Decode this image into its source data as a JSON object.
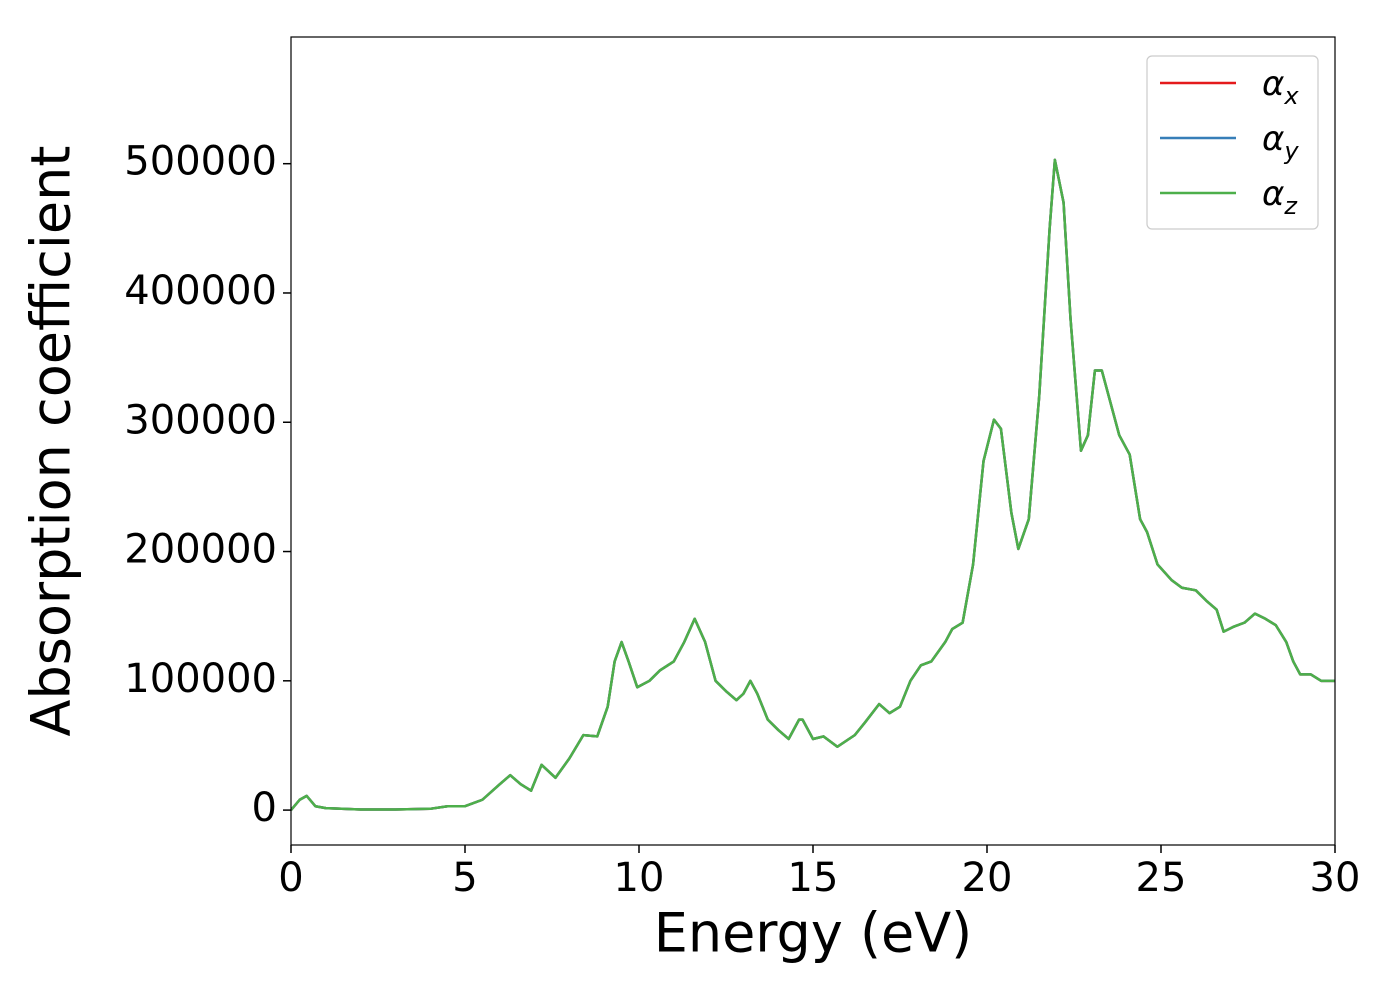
{
  "chart_data": {
    "type": "line",
    "xlabel": "Energy (eV)",
    "ylabel": "Absorption coefficient",
    "x": [
      0,
      0.25,
      0.45,
      0.7,
      1,
      2,
      3,
      4,
      4.5,
      5,
      5.5,
      6,
      6.3,
      6.6,
      6.9,
      7.2,
      7.4,
      7.6,
      8,
      8.4,
      8.8,
      9.1,
      9.3,
      9.5,
      9.7,
      9.95,
      10.3,
      10.6,
      11,
      11.3,
      11.6,
      11.9,
      12.2,
      12.5,
      12.8,
      13,
      13.2,
      13.4,
      13.7,
      14,
      14.3,
      14.6,
      14.7,
      15,
      15.3,
      15.7,
      16.2,
      16.5,
      16.9,
      17.2,
      17.5,
      17.8,
      18.1,
      18.4,
      18.8,
      19,
      19.3,
      19.6,
      19.9,
      20.2,
      20.4,
      20.7,
      20.9,
      21.2,
      21.5,
      21.8,
      21.95,
      22.2,
      22.4,
      22.7,
      22.9,
      23.1,
      23.3,
      23.6,
      23.8,
      24.1,
      24.4,
      24.6,
      24.9,
      25.3,
      25.6,
      26,
      26.3,
      26.6,
      26.8,
      27.1,
      27.4,
      27.7,
      28,
      28.3,
      28.6,
      28.8,
      29,
      29.3,
      29.6,
      30
    ],
    "series": [
      {
        "name": "αx",
        "color": "#e41a1c",
        "values": [
          0,
          8000,
          11000,
          3000,
          1500,
          500,
          500,
          1000,
          3000,
          3000,
          8000,
          20000,
          27000,
          20000,
          15000,
          35000,
          30000,
          25000,
          40000,
          58000,
          57000,
          80000,
          115000,
          130000,
          115000,
          95000,
          100000,
          108000,
          115000,
          130000,
          148000,
          130000,
          100000,
          92000,
          85000,
          90000,
          100000,
          90000,
          70000,
          62000,
          55000,
          70000,
          70000,
          55000,
          57000,
          49000,
          58000,
          68000,
          82000,
          75000,
          80000,
          100000,
          112000,
          115000,
          130000,
          140000,
          145000,
          190000,
          270000,
          302000,
          295000,
          230000,
          202000,
          225000,
          320000,
          450000,
          503000,
          470000,
          380000,
          278000,
          290000,
          340000,
          340000,
          310000,
          290000,
          275000,
          225000,
          215000,
          190000,
          178000,
          172000,
          170000,
          162000,
          155000,
          138000,
          142000,
          145000,
          152000,
          148000,
          143000,
          130000,
          115000,
          105000,
          105000,
          100000,
          100000
        ]
      },
      {
        "name": "αy",
        "color": "#377eb8",
        "values": [
          0,
          8000,
          11000,
          3000,
          1500,
          500,
          500,
          1000,
          3000,
          3000,
          8000,
          20000,
          27000,
          20000,
          15000,
          35000,
          30000,
          25000,
          40000,
          58000,
          57000,
          80000,
          115000,
          130000,
          115000,
          95000,
          100000,
          108000,
          115000,
          130000,
          148000,
          130000,
          100000,
          92000,
          85000,
          90000,
          100000,
          90000,
          70000,
          62000,
          55000,
          70000,
          70000,
          55000,
          57000,
          49000,
          58000,
          68000,
          82000,
          75000,
          80000,
          100000,
          112000,
          115000,
          130000,
          140000,
          145000,
          190000,
          270000,
          302000,
          295000,
          230000,
          202000,
          225000,
          320000,
          450000,
          503000,
          470000,
          380000,
          278000,
          290000,
          340000,
          340000,
          310000,
          290000,
          275000,
          225000,
          215000,
          190000,
          178000,
          172000,
          170000,
          162000,
          155000,
          138000,
          142000,
          145000,
          152000,
          148000,
          143000,
          130000,
          115000,
          105000,
          105000,
          100000,
          100000
        ]
      },
      {
        "name": "αz",
        "color": "#4daf4a",
        "values": [
          0,
          8000,
          11000,
          3000,
          1500,
          500,
          500,
          1000,
          3000,
          3000,
          8000,
          20000,
          27000,
          20000,
          15000,
          35000,
          30000,
          25000,
          40000,
          58000,
          57000,
          80000,
          115000,
          130000,
          115000,
          95000,
          100000,
          108000,
          115000,
          130000,
          148000,
          130000,
          100000,
          92000,
          85000,
          90000,
          100000,
          90000,
          70000,
          62000,
          55000,
          70000,
          70000,
          55000,
          57000,
          49000,
          58000,
          68000,
          82000,
          75000,
          80000,
          100000,
          112000,
          115000,
          130000,
          140000,
          145000,
          190000,
          270000,
          302000,
          295000,
          230000,
          202000,
          225000,
          320000,
          450000,
          503000,
          470000,
          380000,
          278000,
          290000,
          340000,
          340000,
          310000,
          290000,
          275000,
          225000,
          215000,
          190000,
          178000,
          172000,
          170000,
          162000,
          155000,
          138000,
          142000,
          145000,
          152000,
          148000,
          143000,
          130000,
          115000,
          105000,
          105000,
          100000,
          100000
        ]
      }
    ],
    "xlim": [
      0,
      30
    ],
    "xticks": [
      0,
      5,
      10,
      15,
      20,
      25,
      30
    ],
    "ylim": [
      -27000,
      598000
    ],
    "yticks": [
      0,
      100000,
      200000,
      300000,
      400000,
      500000
    ],
    "grid": false,
    "legend": "upper right"
  }
}
